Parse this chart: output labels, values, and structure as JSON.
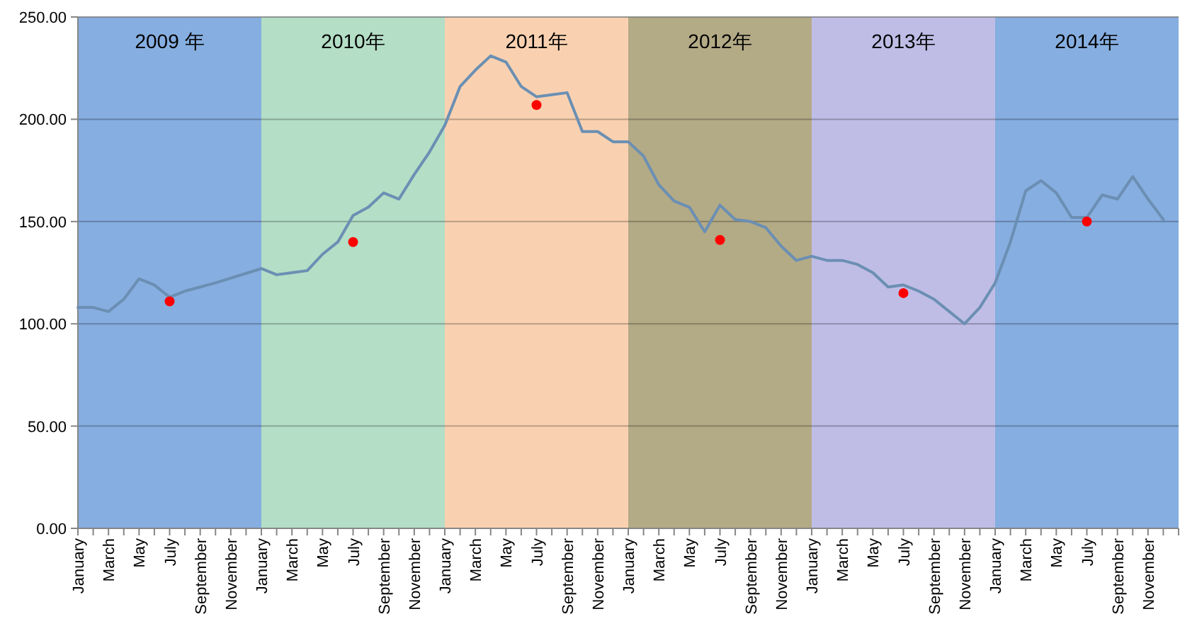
{
  "chart_data": {
    "type": "line",
    "series": [
      {
        "color": "#6b8fb3",
        "x": [
          "2009-01",
          "2009-02",
          "2009-03",
          "2009-04",
          "2009-05",
          "2009-06",
          "2009-07",
          "2009-08",
          "2009-09",
          "2009-10",
          "2010-01",
          "2010-02",
          "2010-03",
          "2010-04",
          "2010-05",
          "2010-06",
          "2010-07",
          "2010-08",
          "2010-09",
          "2010-10",
          "2010-11",
          "2010-12",
          "2011-01",
          "2011-02",
          "2011-03",
          "2011-04",
          "2011-05",
          "2011-06",
          "2011-07",
          "2011-08",
          "2011-09",
          "2011-10",
          "2011-11",
          "2011-12",
          "2012-01",
          "2012-02",
          "2012-03",
          "2012-04",
          "2012-05",
          "2012-06",
          "2012-07",
          "2012-08",
          "2012-09",
          "2012-10",
          "2012-11",
          "2012-12",
          "2013-01",
          "2013-02",
          "2013-03",
          "2013-04",
          "2013-05",
          "2013-06",
          "2013-07",
          "2013-08",
          "2013-09",
          "2013-10",
          "2013-11",
          "2013-12",
          "2014-01",
          "2014-02",
          "2014-03",
          "2014-04",
          "2014-05",
          "2014-06",
          "2014-07",
          "2014-08",
          "2014-09",
          "2014-10",
          "2014-11",
          "2014-12"
        ],
        "values": [
          108,
          108,
          106,
          112,
          122,
          119,
          113,
          116,
          118,
          120,
          127,
          124,
          125,
          126,
          134,
          140,
          153,
          157,
          164,
          161,
          173,
          184,
          197,
          216,
          224,
          231,
          228,
          216,
          211,
          212,
          213,
          194,
          194,
          189,
          189,
          182,
          168,
          160,
          157,
          145,
          158,
          151,
          150,
          147,
          138,
          131,
          133,
          131,
          131,
          129,
          125,
          118,
          119,
          116,
          112,
          106,
          100,
          108,
          120,
          140,
          165,
          170,
          164,
          152,
          152,
          163,
          161,
          172,
          161,
          151
        ]
      },
      {
        "type": "scatter",
        "color": "#ff0000",
        "marker": "circle",
        "x": [
          "2009-07",
          "2010-07",
          "2011-07",
          "2012-07",
          "2013-07",
          "2014-07"
        ],
        "values": [
          111,
          140,
          207,
          141,
          115,
          150
        ]
      }
    ],
    "xlim": [
      "2009-01",
      "2015-01"
    ],
    "xticks": [
      {
        "value": "2009-01",
        "label": "January"
      },
      {
        "value": "2009-02",
        "label": null
      },
      {
        "value": "2009-03",
        "label": "March"
      },
      {
        "value": "2009-04",
        "label": null
      },
      {
        "value": "2009-05",
        "label": "May"
      },
      {
        "value": "2009-06",
        "label": null
      },
      {
        "value": "2009-07",
        "label": "July"
      },
      {
        "value": "2009-08",
        "label": null
      },
      {
        "value": "2009-09",
        "label": "September"
      },
      {
        "value": "2009-10",
        "label": null
      },
      {
        "value": "2009-11",
        "label": "November"
      },
      {
        "value": "2009-12",
        "label": null
      },
      {
        "value": "2010-01",
        "label": "January"
      },
      {
        "value": "2010-02",
        "label": null
      },
      {
        "value": "2010-03",
        "label": "March"
      },
      {
        "value": "2010-04",
        "label": null
      },
      {
        "value": "2010-05",
        "label": "May"
      },
      {
        "value": "2010-06",
        "label": null
      },
      {
        "value": "2010-07",
        "label": "July"
      },
      {
        "value": "2010-08",
        "label": null
      },
      {
        "value": "2010-09",
        "label": "September"
      },
      {
        "value": "2010-10",
        "label": null
      },
      {
        "value": "2010-11",
        "label": "November"
      },
      {
        "value": "2010-12",
        "label": null
      },
      {
        "value": "2011-01",
        "label": "January"
      },
      {
        "value": "2011-02",
        "label": null
      },
      {
        "value": "2011-03",
        "label": "March"
      },
      {
        "value": "2011-04",
        "label": null
      },
      {
        "value": "2011-05",
        "label": "May"
      },
      {
        "value": "2011-06",
        "label": null
      },
      {
        "value": "2011-07",
        "label": "July"
      },
      {
        "value": "2011-08",
        "label": null
      },
      {
        "value": "2011-09",
        "label": "September"
      },
      {
        "value": "2011-10",
        "label": null
      },
      {
        "value": "2011-11",
        "label": "November"
      },
      {
        "value": "2011-12",
        "label": null
      },
      {
        "value": "2012-01",
        "label": "January"
      },
      {
        "value": "2012-02",
        "label": null
      },
      {
        "value": "2012-03",
        "label": "March"
      },
      {
        "value": "2012-04",
        "label": null
      },
      {
        "value": "2012-05",
        "label": "May"
      },
      {
        "value": "2012-06",
        "label": null
      },
      {
        "value": "2012-07",
        "label": "July"
      },
      {
        "value": "2012-08",
        "label": null
      },
      {
        "value": "2012-09",
        "label": "September"
      },
      {
        "value": "2012-10",
        "label": null
      },
      {
        "value": "2012-11",
        "label": "November"
      },
      {
        "value": "2012-12",
        "label": null
      },
      {
        "value": "2013-01",
        "label": "January"
      },
      {
        "value": "2013-02",
        "label": null
      },
      {
        "value": "2013-03",
        "label": "March"
      },
      {
        "value": "2013-04",
        "label": null
      },
      {
        "value": "2013-05",
        "label": "May"
      },
      {
        "value": "2013-06",
        "label": null
      },
      {
        "value": "2013-07",
        "label": "July"
      },
      {
        "value": "2013-08",
        "label": null
      },
      {
        "value": "2013-09",
        "label": "September"
      },
      {
        "value": "2013-10",
        "label": null
      },
      {
        "value": "2013-11",
        "label": "November"
      },
      {
        "value": "2013-12",
        "label": null
      },
      {
        "value": "2014-01",
        "label": "January"
      },
      {
        "value": "2014-02",
        "label": null
      },
      {
        "value": "2014-03",
        "label": "March"
      },
      {
        "value": "2014-04",
        "label": null
      },
      {
        "value": "2014-05",
        "label": "May"
      },
      {
        "value": "2014-06",
        "label": null
      },
      {
        "value": "2014-07",
        "label": "July"
      },
      {
        "value": "2014-08",
        "label": null
      },
      {
        "value": "2014-09",
        "label": "September"
      },
      {
        "value": "2014-10",
        "label": null
      },
      {
        "value": "2014-11",
        "label": "November"
      },
      {
        "value": "2014-12",
        "label": null
      },
      {
        "value": "2015-01",
        "label": null
      }
    ],
    "ylim": [
      0,
      250
    ],
    "yticks": [
      {
        "value": 0,
        "label": "0.00"
      },
      {
        "value": 50,
        "label": "50.00"
      },
      {
        "value": 100,
        "label": "100.00"
      },
      {
        "value": 150,
        "label": "150.00"
      },
      {
        "value": 200,
        "label": "200.00"
      },
      {
        "value": 250,
        "label": "250.00"
      }
    ],
    "grid": "y",
    "bands": [
      {
        "axis": "x",
        "from": "2009-01",
        "to": "2010-01",
        "label": "2009 年",
        "color": "#86aee0"
      },
      {
        "axis": "x",
        "from": "2010-01",
        "to": "2011-01",
        "label": "2010年",
        "color": "#b4dec6"
      },
      {
        "axis": "x",
        "from": "2011-01",
        "to": "2012-01",
        "label": "2011年",
        "color": "#f9d1b1"
      },
      {
        "axis": "x",
        "from": "2012-01",
        "to": "2013-01",
        "label": "2012年",
        "color": "#b3aa86"
      },
      {
        "axis": "x",
        "from": "2013-01",
        "to": "2014-01",
        "label": "2013年",
        "color": "#bfbde6"
      },
      {
        "axis": "x",
        "from": "2014-01",
        "to": "2015-01",
        "label": "2014年",
        "color": "#86aee0"
      }
    ]
  }
}
